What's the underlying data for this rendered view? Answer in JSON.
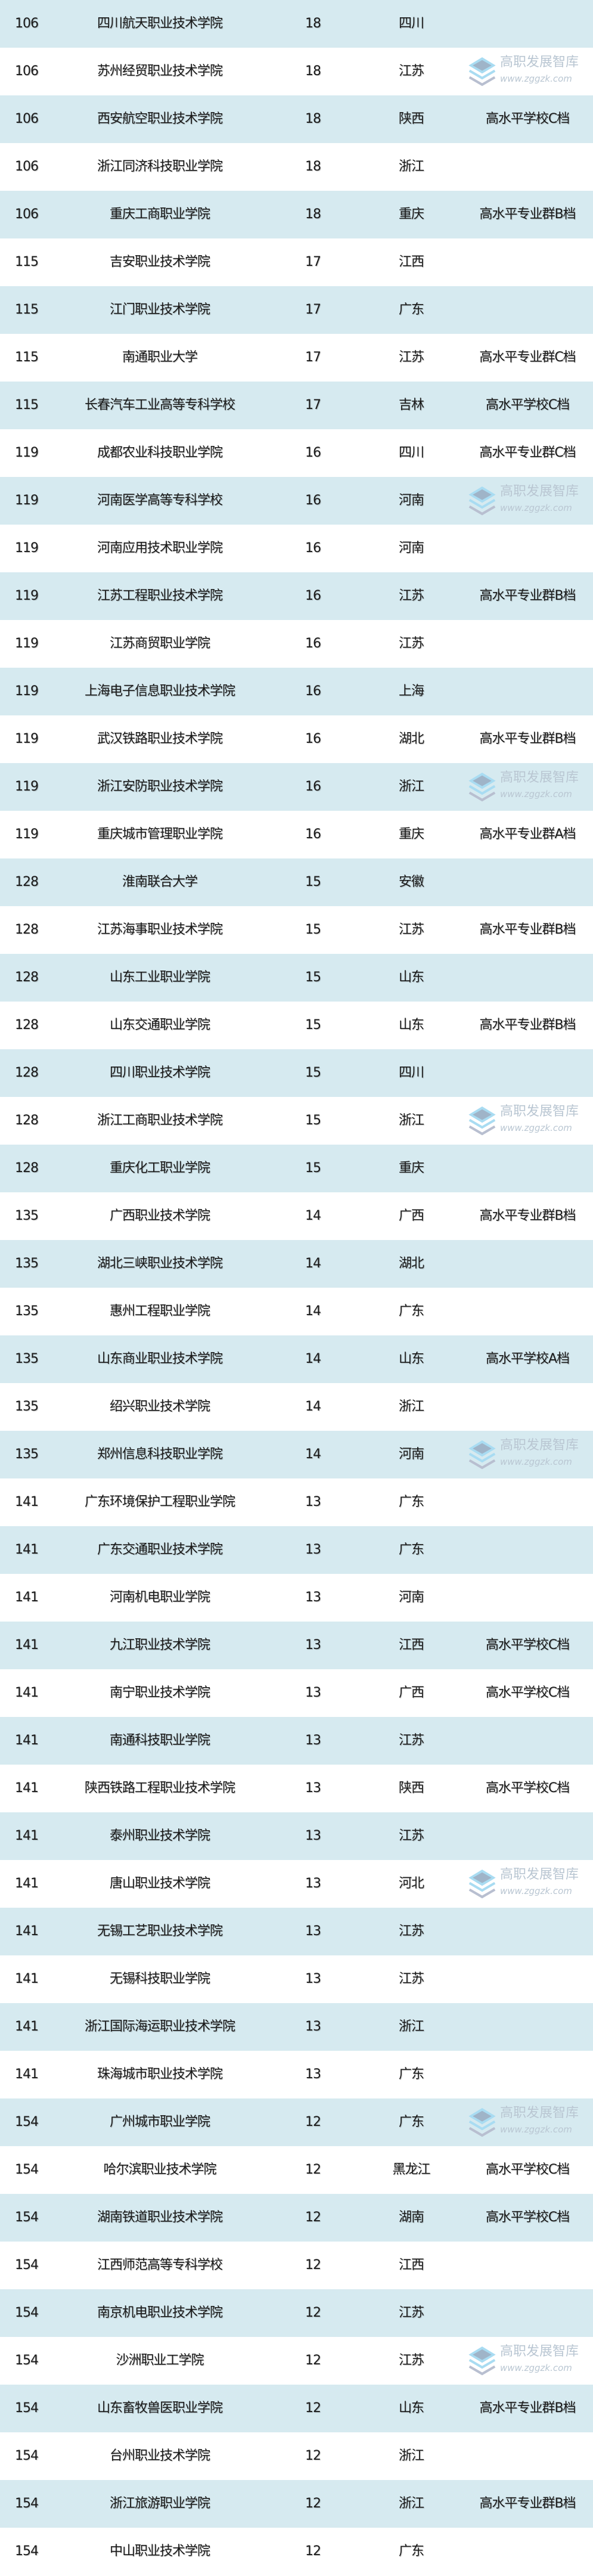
{
  "colors": {
    "row_alt": "#d6eaf0",
    "row_plain": "#ffffff",
    "text": "#1a1a1a"
  },
  "watermark": {
    "name": "高职发展智库",
    "url": "www.zggzk.com"
  },
  "rows": [
    {
      "rank": "106",
      "name": "四川航天职业技术学院",
      "score": "18",
      "province": "四川",
      "tag": ""
    },
    {
      "rank": "106",
      "name": "苏州经贸职业技术学院",
      "score": "18",
      "province": "江苏",
      "tag": ""
    },
    {
      "rank": "106",
      "name": "西安航空职业技术学院",
      "score": "18",
      "province": "陕西",
      "tag": "高水平学校C档"
    },
    {
      "rank": "106",
      "name": "浙江同济科技职业学院",
      "score": "18",
      "province": "浙江",
      "tag": ""
    },
    {
      "rank": "106",
      "name": "重庆工商职业学院",
      "score": "18",
      "province": "重庆",
      "tag": "高水平专业群B档"
    },
    {
      "rank": "115",
      "name": "吉安职业技术学院",
      "score": "17",
      "province": "江西",
      "tag": ""
    },
    {
      "rank": "115",
      "name": "江门职业技术学院",
      "score": "17",
      "province": "广东",
      "tag": ""
    },
    {
      "rank": "115",
      "name": "南通职业大学",
      "score": "17",
      "province": "江苏",
      "tag": "高水平专业群C档"
    },
    {
      "rank": "115",
      "name": "长春汽车工业高等专科学校",
      "score": "17",
      "province": "吉林",
      "tag": "高水平学校C档"
    },
    {
      "rank": "119",
      "name": "成都农业科技职业学院",
      "score": "16",
      "province": "四川",
      "tag": "高水平专业群C档"
    },
    {
      "rank": "119",
      "name": "河南医学高等专科学校",
      "score": "16",
      "province": "河南",
      "tag": ""
    },
    {
      "rank": "119",
      "name": "河南应用技术职业学院",
      "score": "16",
      "province": "河南",
      "tag": ""
    },
    {
      "rank": "119",
      "name": "江苏工程职业技术学院",
      "score": "16",
      "province": "江苏",
      "tag": "高水平专业群B档"
    },
    {
      "rank": "119",
      "name": "江苏商贸职业学院",
      "score": "16",
      "province": "江苏",
      "tag": ""
    },
    {
      "rank": "119",
      "name": "上海电子信息职业技术学院",
      "score": "16",
      "province": "上海",
      "tag": ""
    },
    {
      "rank": "119",
      "name": "武汉铁路职业技术学院",
      "score": "16",
      "province": "湖北",
      "tag": "高水平专业群B档"
    },
    {
      "rank": "119",
      "name": "浙江安防职业技术学院",
      "score": "16",
      "province": "浙江",
      "tag": ""
    },
    {
      "rank": "119",
      "name": "重庆城市管理职业学院",
      "score": "16",
      "province": "重庆",
      "tag": "高水平专业群A档"
    },
    {
      "rank": "128",
      "name": "淮南联合大学",
      "score": "15",
      "province": "安徽",
      "tag": ""
    },
    {
      "rank": "128",
      "name": "江苏海事职业技术学院",
      "score": "15",
      "province": "江苏",
      "tag": "高水平专业群B档"
    },
    {
      "rank": "128",
      "name": "山东工业职业学院",
      "score": "15",
      "province": "山东",
      "tag": ""
    },
    {
      "rank": "128",
      "name": "山东交通职业学院",
      "score": "15",
      "province": "山东",
      "tag": "高水平专业群B档"
    },
    {
      "rank": "128",
      "name": "四川职业技术学院",
      "score": "15",
      "province": "四川",
      "tag": ""
    },
    {
      "rank": "128",
      "name": "浙江工商职业技术学院",
      "score": "15",
      "province": "浙江",
      "tag": ""
    },
    {
      "rank": "128",
      "name": "重庆化工职业学院",
      "score": "15",
      "province": "重庆",
      "tag": ""
    },
    {
      "rank": "135",
      "name": "广西职业技术学院",
      "score": "14",
      "province": "广西",
      "tag": "高水平专业群B档"
    },
    {
      "rank": "135",
      "name": "湖北三峡职业技术学院",
      "score": "14",
      "province": "湖北",
      "tag": ""
    },
    {
      "rank": "135",
      "name": "惠州工程职业学院",
      "score": "14",
      "province": "广东",
      "tag": ""
    },
    {
      "rank": "135",
      "name": "山东商业职业技术学院",
      "score": "14",
      "province": "山东",
      "tag": "高水平学校A档"
    },
    {
      "rank": "135",
      "name": "绍兴职业技术学院",
      "score": "14",
      "province": "浙江",
      "tag": ""
    },
    {
      "rank": "135",
      "name": "郑州信息科技职业学院",
      "score": "14",
      "province": "河南",
      "tag": ""
    },
    {
      "rank": "141",
      "name": "广东环境保护工程职业学院",
      "score": "13",
      "province": "广东",
      "tag": ""
    },
    {
      "rank": "141",
      "name": "广东交通职业技术学院",
      "score": "13",
      "province": "广东",
      "tag": ""
    },
    {
      "rank": "141",
      "name": "河南机电职业学院",
      "score": "13",
      "province": "河南",
      "tag": ""
    },
    {
      "rank": "141",
      "name": "九江职业技术学院",
      "score": "13",
      "province": "江西",
      "tag": "高水平学校C档"
    },
    {
      "rank": "141",
      "name": "南宁职业技术学院",
      "score": "13",
      "province": "广西",
      "tag": "高水平学校C档"
    },
    {
      "rank": "141",
      "name": "南通科技职业学院",
      "score": "13",
      "province": "江苏",
      "tag": ""
    },
    {
      "rank": "141",
      "name": "陕西铁路工程职业技术学院",
      "score": "13",
      "province": "陕西",
      "tag": "高水平学校C档"
    },
    {
      "rank": "141",
      "name": "泰州职业技术学院",
      "score": "13",
      "province": "江苏",
      "tag": ""
    },
    {
      "rank": "141",
      "name": "唐山职业技术学院",
      "score": "13",
      "province": "河北",
      "tag": ""
    },
    {
      "rank": "141",
      "name": "无锡工艺职业技术学院",
      "score": "13",
      "province": "江苏",
      "tag": ""
    },
    {
      "rank": "141",
      "name": "无锡科技职业学院",
      "score": "13",
      "province": "江苏",
      "tag": ""
    },
    {
      "rank": "141",
      "name": "浙江国际海运职业技术学院",
      "score": "13",
      "province": "浙江",
      "tag": ""
    },
    {
      "rank": "141",
      "name": "珠海城市职业技术学院",
      "score": "13",
      "province": "广东",
      "tag": ""
    },
    {
      "rank": "154",
      "name": "广州城市职业学院",
      "score": "12",
      "province": "广东",
      "tag": ""
    },
    {
      "rank": "154",
      "name": "哈尔滨职业技术学院",
      "score": "12",
      "province": "黑龙江",
      "tag": "高水平学校C档"
    },
    {
      "rank": "154",
      "name": "湖南铁道职业技术学院",
      "score": "12",
      "province": "湖南",
      "tag": "高水平学校C档"
    },
    {
      "rank": "154",
      "name": "江西师范高等专科学校",
      "score": "12",
      "province": "江西",
      "tag": ""
    },
    {
      "rank": "154",
      "name": "南京机电职业技术学院",
      "score": "12",
      "province": "江苏",
      "tag": ""
    },
    {
      "rank": "154",
      "name": "沙洲职业工学院",
      "score": "12",
      "province": "江苏",
      "tag": ""
    },
    {
      "rank": "154",
      "name": "山东畜牧兽医职业学院",
      "score": "12",
      "province": "山东",
      "tag": "高水平专业群B档"
    },
    {
      "rank": "154",
      "name": "台州职业技术学院",
      "score": "12",
      "province": "浙江",
      "tag": ""
    },
    {
      "rank": "154",
      "name": "浙江旅游职业学院",
      "score": "12",
      "province": "浙江",
      "tag": "高水平专业群B档"
    },
    {
      "rank": "154",
      "name": "中山职业技术学院",
      "score": "12",
      "province": "广东",
      "tag": ""
    }
  ]
}
